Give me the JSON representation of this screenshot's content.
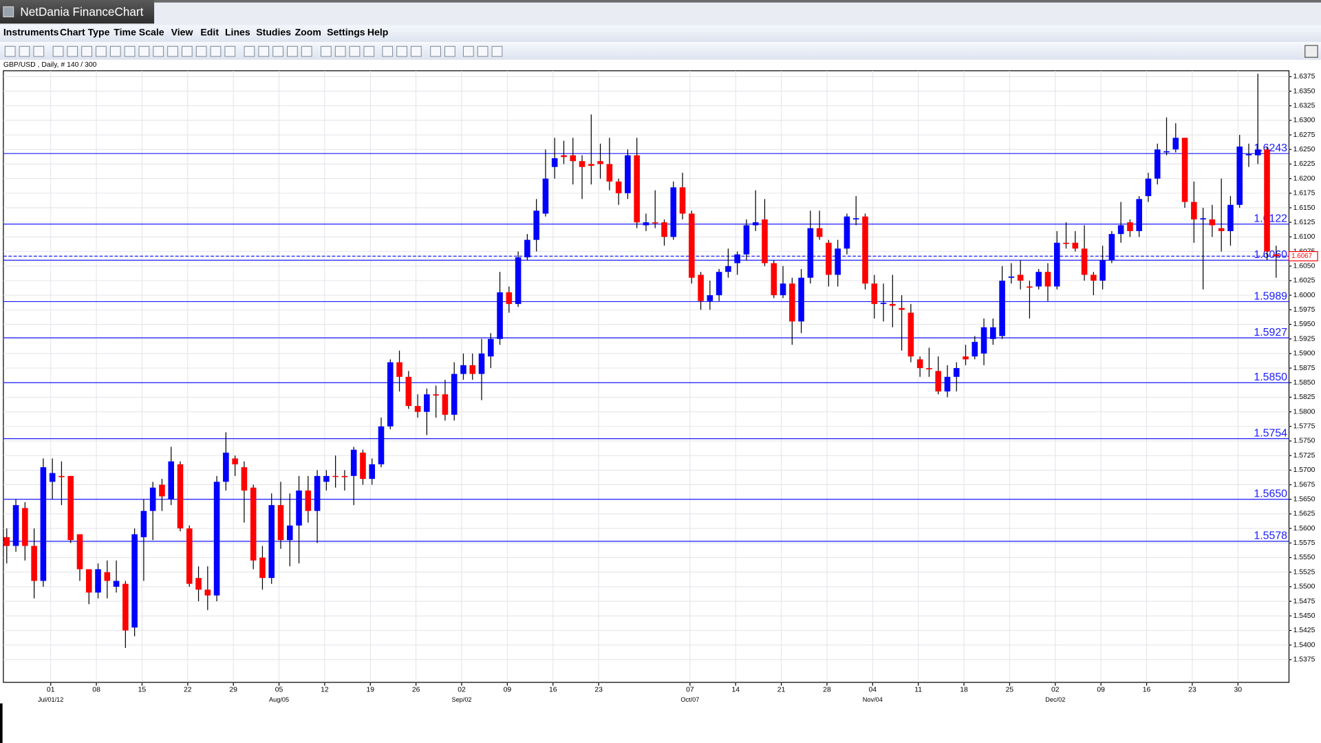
{
  "window_title": "NetDania FinanceChart",
  "menu": [
    "Instruments",
    "Chart Type",
    "Time Scale",
    "View",
    "Edit",
    "Lines",
    "Studies",
    "Zoom",
    "Settings",
    "Help"
  ],
  "chart_data": {
    "type": "candlestick",
    "subtitle": "GBP/USD , Daily, # 140 / 300",
    "up_color": "#0000ff",
    "down_color": "#ff0000",
    "level_color": "#1a1aff",
    "last_color": "#ff0000",
    "grid": true,
    "ylim": [
      1.5336,
      1.6385
    ],
    "yticks": [
      1.5375,
      {
        "value": 1.54,
        "label": "1.5400"
      },
      1.5425,
      {
        "value": 1.545,
        "label": "1.5450"
      },
      1.5475,
      {
        "value": 1.55,
        "label": "1.5500"
      },
      1.5525,
      {
        "value": 1.555,
        "label": "1.5550"
      },
      1.5575,
      {
        "value": 1.56,
        "label": "1.5600"
      },
      1.5625,
      {
        "value": 1.565,
        "label": "1.5650"
      },
      1.5675,
      {
        "value": 1.57,
        "label": "1.5700"
      },
      1.5725,
      {
        "value": 1.575,
        "label": "1.5750"
      },
      1.5775,
      {
        "value": 1.58,
        "label": "1.5800"
      },
      1.5825,
      {
        "value": 1.585,
        "label": "1.5850"
      },
      1.5875,
      {
        "value": 1.59,
        "label": "1.5900"
      },
      1.5925,
      {
        "value": 1.595,
        "label": "1.5950"
      },
      1.5975,
      {
        "value": 1.6,
        "label": "1.6000"
      },
      1.6025,
      {
        "value": 1.605,
        "label": "1.6050"
      },
      1.6075,
      {
        "value": 1.61,
        "label": "1.6100"
      },
      1.6125,
      {
        "value": 1.615,
        "label": "1.6150"
      },
      1.6175,
      {
        "value": 1.62,
        "label": "1.6200"
      },
      1.6225,
      {
        "value": 1.625,
        "label": "1.6250"
      },
      1.6275,
      {
        "value": 1.63,
        "label": "1.6300"
      },
      1.6325,
      {
        "value": 1.635,
        "label": "1.6350"
      },
      1.6375
    ],
    "levels": [
      1.6243,
      1.6122,
      {
        "value": 1.606,
        "label": "1.6060"
      },
      1.5989,
      1.5927,
      {
        "value": 1.585,
        "label": "1.5850"
      },
      1.5754,
      {
        "value": 1.565,
        "label": "1.5650"
      },
      1.5578
    ],
    "last_price": 1.6067,
    "categories": [
      null,
      null,
      null,
      null,
      null,
      "01",
      null,
      null,
      null,
      null,
      "08",
      null,
      null,
      null,
      null,
      "15",
      null,
      null,
      null,
      null,
      "22",
      null,
      null,
      null,
      null,
      "29",
      null,
      null,
      null,
      null,
      "05",
      null,
      null,
      null,
      null,
      "12",
      null,
      null,
      null,
      null,
      "19",
      null,
      null,
      null,
      null,
      "26",
      null,
      null,
      null,
      null,
      "02",
      null,
      null,
      null,
      null,
      "09",
      null,
      null,
      null,
      null,
      "16",
      null,
      null,
      null,
      null,
      "23",
      null,
      null,
      null,
      null,
      null,
      null,
      null,
      null,
      null,
      "07",
      null,
      null,
      null,
      null,
      "14",
      null,
      null,
      null,
      null,
      "21",
      null,
      null,
      null,
      null,
      "28",
      null,
      null,
      null,
      null,
      "04",
      null,
      null,
      null,
      null,
      "11",
      null,
      null,
      null,
      null,
      "18",
      null,
      null,
      null,
      null,
      "25",
      null,
      null,
      null,
      null,
      "02",
      null,
      null,
      null,
      null,
      "09",
      null,
      null,
      null,
      null,
      "16",
      null,
      null,
      null,
      null,
      "23",
      null,
      null,
      null,
      null,
      "30",
      null,
      null,
      null,
      null
    ],
    "months": [
      null,
      null,
      null,
      null,
      null,
      "Jul/01/12",
      null,
      null,
      null,
      null,
      null,
      null,
      null,
      null,
      null,
      null,
      null,
      null,
      null,
      null,
      null,
      null,
      null,
      null,
      null,
      null,
      null,
      null,
      null,
      null,
      "Aug/05",
      null,
      null,
      null,
      null,
      null,
      null,
      null,
      null,
      null,
      null,
      null,
      null,
      null,
      null,
      null,
      null,
      null,
      null,
      null,
      "Sep/02",
      null,
      null,
      null,
      null,
      null,
      null,
      null,
      null,
      null,
      null,
      null,
      null,
      null,
      null,
      null,
      null,
      null,
      null,
      null,
      null,
      null,
      null,
      null,
      null,
      "Oct/07",
      null,
      null,
      null,
      null,
      null,
      null,
      null,
      null,
      null,
      null,
      null,
      null,
      null,
      null,
      null,
      null,
      null,
      null,
      null,
      "Nov/04",
      null,
      null,
      null,
      null,
      null,
      null,
      null,
      null,
      null,
      null,
      null,
      null,
      null,
      null,
      null,
      null,
      null,
      null,
      null,
      "Dec/02",
      null,
      null,
      null,
      null,
      null,
      null,
      null,
      null,
      null,
      null,
      null,
      null,
      null,
      null,
      null,
      null,
      null,
      null,
      null,
      null,
      null,
      null,
      null,
      null
    ],
    "open": [
      1.5585,
      1.557,
      1.5635,
      1.557,
      1.551,
      1.568,
      1.569,
      1.569,
      1.559,
      1.553,
      1.549,
      1.5525,
      1.55,
      1.5505,
      1.543,
      1.5585,
      1.563,
      1.5675,
      1.565,
      1.571,
      1.56,
      1.5515,
      1.5495,
      1.5485,
      1.568,
      1.572,
      1.5705,
      1.567,
      1.555,
      1.5515,
      1.564,
      1.558,
      1.5605,
      1.5665,
      1.563,
      1.568,
      1.569,
      1.569,
      1.569,
      1.573,
      1.5685,
      1.571,
      1.5775,
      1.5885,
      1.586,
      1.581,
      1.58,
      1.583,
      1.583,
      1.5795,
      1.5865,
      1.588,
      1.5865,
      1.5895,
      1.5925,
      1.6005,
      1.5985,
      1.6065,
      1.6095,
      1.614,
      1.622,
      1.624,
      1.624,
      1.623,
      1.6225,
      1.623,
      1.6225,
      1.6195,
      1.6175,
      1.624,
      1.612,
      1.6125,
      1.6125,
      1.61,
      1.6185,
      1.614,
      1.6035,
      1.599,
      1.6,
      1.604,
      1.6055,
      1.607,
      1.612,
      1.613,
      1.6055,
      1.6,
      1.602,
      1.5955,
      1.603,
      1.6115,
      1.609,
      1.6035,
      1.608,
      1.613,
      1.6135,
      1.602,
      1.5985,
      1.5985,
      1.5978,
      1.597,
      1.589,
      1.5875,
      1.587,
      1.5835,
      1.586,
      1.5895,
      1.5895,
      1.59,
      1.5925,
      1.593,
      1.603,
      1.6035,
      1.6015,
      1.6015,
      1.604,
      1.6015,
      1.609,
      1.609,
      1.608,
      1.6035,
      1.6025,
      1.606,
      1.6105,
      1.6125,
      1.611,
      1.617,
      1.62,
      1.6245,
      1.625,
      1.627,
      1.616,
      1.613,
      1.613,
      1.6115,
      1.611,
      1.6155,
      1.624,
      1.624,
      1.625,
      1.607
    ],
    "high": [
      1.56,
      1.565,
      1.5645,
      1.56,
      1.572,
      1.572,
      1.5715,
      1.569,
      1.559,
      1.553,
      1.554,
      1.5545,
      1.5545,
      1.551,
      1.56,
      1.565,
      1.568,
      1.5685,
      1.574,
      1.5715,
      1.5605,
      1.5535,
      1.5535,
      1.569,
      1.5765,
      1.5725,
      1.5715,
      1.5675,
      1.557,
      1.566,
      1.568,
      1.566,
      1.569,
      1.569,
      1.57,
      1.57,
      1.5725,
      1.57,
      1.574,
      1.5735,
      1.572,
      1.579,
      1.589,
      1.5905,
      1.587,
      1.583,
      1.584,
      1.5845,
      1.5855,
      1.5885,
      1.59,
      1.59,
      1.5925,
      1.5935,
      1.604,
      1.6015,
      1.6075,
      1.6105,
      1.6165,
      1.625,
      1.627,
      1.6265,
      1.627,
      1.624,
      1.631,
      1.626,
      1.627,
      1.62,
      1.625,
      1.627,
      1.614,
      1.618,
      1.613,
      1.6195,
      1.621,
      1.6145,
      1.604,
      1.6025,
      1.6045,
      1.608,
      1.6075,
      1.613,
      1.618,
      1.6165,
      1.606,
      1.605,
      1.603,
      1.6045,
      1.6145,
      1.6145,
      1.6095,
      1.6095,
      1.614,
      1.617,
      1.614,
      1.6035,
      1.602,
      1.6035,
      1.6,
      1.5985,
      1.5895,
      1.591,
      1.5895,
      1.588,
      1.5885,
      1.5915,
      1.593,
      1.596,
      1.596,
      1.605,
      1.6055,
      1.606,
      1.6025,
      1.6045,
      1.6055,
      1.611,
      1.6125,
      1.611,
      1.612,
      1.604,
      1.6085,
      1.611,
      1.616,
      1.613,
      1.617,
      1.621,
      1.626,
      1.6305,
      1.6295,
      1.627,
      1.6195,
      1.615,
      1.6155,
      1.62,
      1.617,
      1.6275,
      1.626,
      1.638,
      1.6255,
      1.6085
    ],
    "low": [
      1.554,
      1.556,
      1.5545,
      1.548,
      1.55,
      1.565,
      1.564,
      1.5575,
      1.551,
      1.547,
      1.548,
      1.548,
      1.549,
      1.5395,
      1.5415,
      1.551,
      1.558,
      1.563,
      1.564,
      1.5595,
      1.55,
      1.5475,
      1.546,
      1.5475,
      1.5665,
      1.569,
      1.561,
      1.553,
      1.5495,
      1.5505,
      1.5565,
      1.5535,
      1.554,
      1.561,
      1.5575,
      1.5665,
      1.567,
      1.5665,
      1.564,
      1.5675,
      1.5675,
      1.5705,
      1.577,
      1.5835,
      1.5805,
      1.579,
      1.576,
      1.579,
      1.5785,
      1.5785,
      1.5855,
      1.5855,
      1.582,
      1.5875,
      1.5915,
      1.597,
      1.598,
      1.606,
      1.6075,
      1.6135,
      1.62,
      1.6225,
      1.619,
      1.6165,
      1.619,
      1.62,
      1.618,
      1.6155,
      1.6165,
      1.6115,
      1.611,
      1.6115,
      1.6085,
      1.6095,
      1.613,
      1.602,
      1.5975,
      1.5975,
      1.599,
      1.603,
      1.6035,
      1.606,
      1.611,
      1.605,
      1.5995,
      1.5995,
      1.5915,
      1.5935,
      1.602,
      1.6095,
      1.6015,
      1.6015,
      1.607,
      1.612,
      1.601,
      1.596,
      1.5955,
      1.5945,
      1.5905,
      1.5885,
      1.586,
      1.586,
      1.583,
      1.5825,
      1.5835,
      1.588,
      1.589,
      1.588,
      1.5915,
      1.5925,
      1.602,
      1.601,
      1.596,
      1.601,
      1.599,
      1.601,
      1.608,
      1.6075,
      1.6025,
      1.6,
      1.601,
      1.6055,
      1.609,
      1.61,
      1.61,
      1.616,
      1.619,
      1.624,
      1.6245,
      1.615,
      1.609,
      1.601,
      1.61,
      1.6075,
      1.6085,
      1.615,
      1.622,
      1.6225,
      1.606,
      1.603
    ],
    "close": [
      1.557,
      1.564,
      1.557,
      1.551,
      1.5705,
      1.5695,
      1.5688,
      1.558,
      1.553,
      1.549,
      1.553,
      1.551,
      1.551,
      1.5425,
      1.559,
      1.563,
      1.567,
      1.5655,
      1.5715,
      1.56,
      1.5505,
      1.5495,
      1.5485,
      1.568,
      1.573,
      1.571,
      1.5665,
      1.5545,
      1.5515,
      1.564,
      1.558,
      1.5605,
      1.5665,
      1.563,
      1.569,
      1.569,
      1.5689,
      1.5688,
      1.5735,
      1.5685,
      1.571,
      1.5775,
      1.5885,
      1.586,
      1.581,
      1.58,
      1.583,
      1.5828,
      1.5795,
      1.5865,
      1.588,
      1.5865,
      1.59,
      1.5925,
      1.6005,
      1.5985,
      1.6065,
      1.6095,
      1.6145,
      1.62,
      1.6235,
      1.6237,
      1.623,
      1.622,
      1.6222,
      1.6225,
      1.6195,
      1.6175,
      1.624,
      1.6125,
      1.6125,
      1.6124,
      1.61,
      1.6185,
      1.614,
      1.603,
      1.599,
      1.6,
      1.604,
      1.605,
      1.607,
      1.612,
      1.6125,
      1.6055,
      1.6,
      1.602,
      1.5955,
      1.603,
      1.6115,
      1.61,
      1.6035,
      1.608,
      1.6135,
      1.6132,
      1.602,
      1.5985,
      1.5987,
      1.5982,
      1.5975,
      1.5895,
      1.5875,
      1.5873,
      1.5835,
      1.586,
      1.5875,
      1.589,
      1.592,
      1.5945,
      1.5945,
      1.6025,
      1.6032,
      1.6025,
      1.6013,
      1.604,
      1.6015,
      1.609,
      1.6088,
      1.608,
      1.6035,
      1.6025,
      1.606,
      1.6105,
      1.612,
      1.611,
      1.6165,
      1.62,
      1.625,
      1.6247,
      1.627,
      1.616,
      1.613,
      1.6132,
      1.612,
      1.611,
      1.6155,
      1.6255,
      1.6242,
      1.625,
      1.6075,
      1.6067
    ]
  }
}
